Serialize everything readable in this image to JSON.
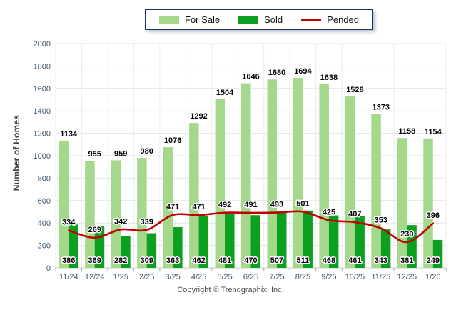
{
  "legend": {
    "items": [
      {
        "label": "For Sale",
        "type": "box",
        "color": "#a4d98c"
      },
      {
        "label": "Sold",
        "type": "box",
        "color": "#0ba01f"
      },
      {
        "label": "Pended",
        "type": "line",
        "color": "#c00000"
      }
    ],
    "border_color": "#17375d"
  },
  "footer": {
    "copyright": "Copyright © Trendgraphix, Inc."
  },
  "chart_data": {
    "type": "bar",
    "title": "",
    "xlabel": "",
    "ylabel": "Number of Homes",
    "ylim": [
      0,
      2000
    ],
    "ytick_step": 200,
    "yticks": [
      0,
      200,
      400,
      600,
      800,
      1000,
      1200,
      1400,
      1600,
      1800,
      2000
    ],
    "grid": true,
    "legend_position": "top",
    "categories": [
      "11/24",
      "12/24",
      "1/25",
      "2/25",
      "3/25",
      "4/25",
      "5/25",
      "6/25",
      "7/25",
      "8/25",
      "9/25",
      "10/25",
      "11/25",
      "12/25",
      "1/26"
    ],
    "series": [
      {
        "name": "For Sale",
        "type": "bar",
        "color": "#a4d98c",
        "values": [
          1134,
          955,
          959,
          980,
          1076,
          1292,
          1504,
          1646,
          1680,
          1694,
          1638,
          1528,
          1373,
          1158,
          1154
        ]
      },
      {
        "name": "Sold",
        "type": "bar",
        "color": "#0ba01f",
        "values": [
          386,
          369,
          282,
          309,
          363,
          462,
          481,
          470,
          507,
          511,
          468,
          461,
          343,
          381,
          249
        ]
      },
      {
        "name": "Pended",
        "type": "line",
        "color": "#c00000",
        "values": [
          334,
          269,
          342,
          339,
          471,
          471,
          492,
          491,
          493,
          501,
          425,
          407,
          353,
          230,
          396
        ]
      }
    ],
    "colors": {
      "gridline": "#e4e4e4",
      "vertical_gridline": "#ededed",
      "axis_line": "#c9c9c9",
      "tick_text": "#3f566b",
      "value_label": "#000000"
    }
  }
}
